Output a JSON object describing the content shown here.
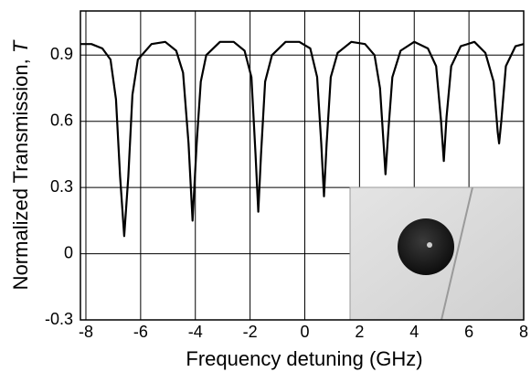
{
  "chart_data": {
    "type": "line",
    "x_label": "Frequency detuning (GHz)",
    "y_label": "Normalized Transmission, ",
    "y_label_symbol": "T",
    "xlim": [
      -8.2,
      8
    ],
    "xticks": [
      -8,
      -6,
      -4,
      -2,
      0,
      2,
      4,
      6,
      8
    ],
    "ylim": [
      -0.3,
      1.1
    ],
    "yticks": [
      -0.3,
      0,
      0.3,
      0.6,
      0.9
    ],
    "grid": true,
    "series": [
      {
        "color": "#000000",
        "x": [
          -8.2,
          -7.8,
          -7.4,
          -7.1,
          -6.9,
          -6.75,
          -6.6,
          -6.45,
          -6.3,
          -6.1,
          -5.6,
          -5.1,
          -4.7,
          -4.45,
          -4.25,
          -4.1,
          -3.95,
          -3.8,
          -3.6,
          -3.1,
          -2.6,
          -2.2,
          -1.95,
          -1.8,
          -1.7,
          -1.6,
          -1.45,
          -1.2,
          -0.7,
          -0.2,
          0.2,
          0.45,
          0.6,
          0.7,
          0.8,
          0.95,
          1.2,
          1.7,
          2.2,
          2.55,
          2.75,
          2.88,
          2.95,
          3.05,
          3.2,
          3.5,
          4.0,
          4.5,
          4.8,
          4.98,
          5.08,
          5.18,
          5.35,
          5.7,
          6.2,
          6.6,
          6.9,
          7.05,
          7.1,
          7.18,
          7.35,
          7.7,
          8.0
        ],
        "values": [
          0.95,
          0.95,
          0.93,
          0.88,
          0.7,
          0.35,
          0.08,
          0.35,
          0.72,
          0.88,
          0.95,
          0.96,
          0.92,
          0.82,
          0.5,
          0.15,
          0.5,
          0.78,
          0.9,
          0.96,
          0.96,
          0.92,
          0.8,
          0.45,
          0.19,
          0.45,
          0.78,
          0.9,
          0.96,
          0.96,
          0.93,
          0.8,
          0.5,
          0.26,
          0.5,
          0.8,
          0.91,
          0.96,
          0.95,
          0.9,
          0.75,
          0.5,
          0.36,
          0.55,
          0.8,
          0.92,
          0.96,
          0.93,
          0.85,
          0.6,
          0.42,
          0.62,
          0.85,
          0.94,
          0.96,
          0.91,
          0.78,
          0.55,
          0.5,
          0.6,
          0.85,
          0.94,
          0.95
        ]
      }
    ]
  }
}
